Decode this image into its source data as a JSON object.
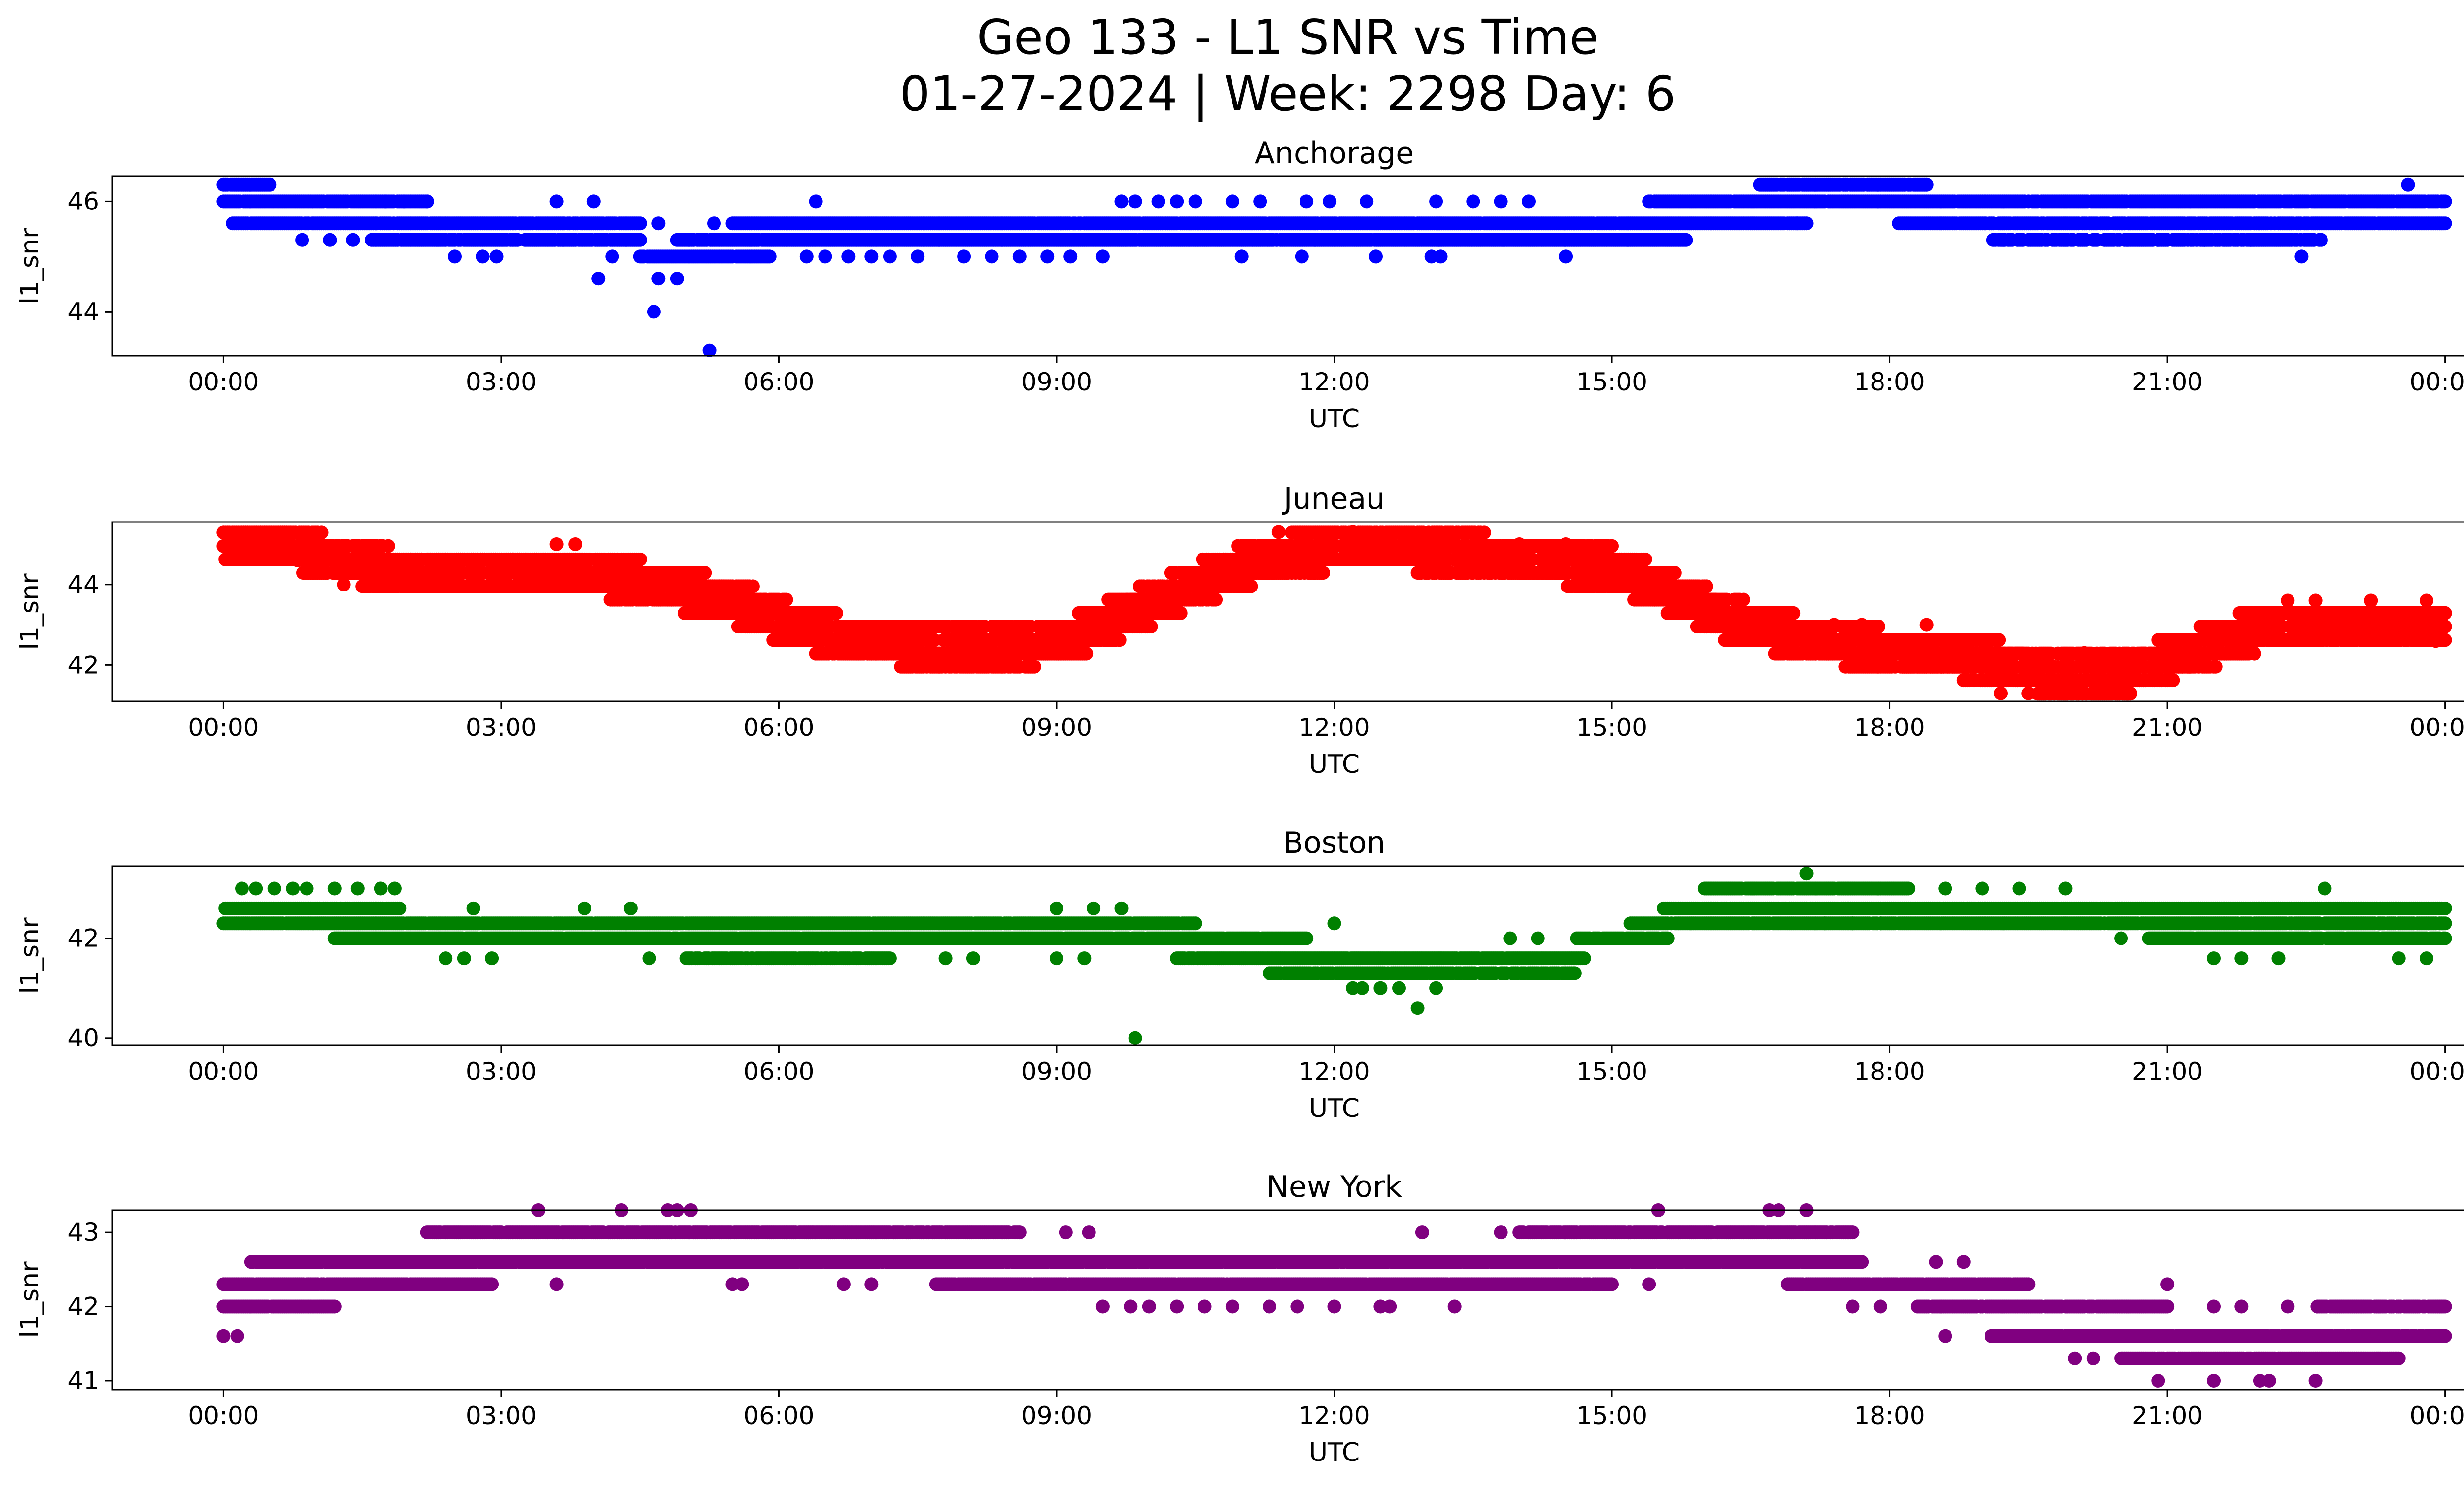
{
  "figure": {
    "title_line1": "Geo 133 - L1 SNR vs Time",
    "title_line2": "01-27-2024 | Week: 2298 Day: 6"
  },
  "chart_data": [
    {
      "type": "scatter",
      "title": "Anchorage",
      "xlabel": "UTC",
      "ylabel": "l1_snr",
      "color": "#0000ff",
      "x_range_hours": [
        -1.2,
        25.2
      ],
      "ylim": [
        43.2,
        46.45
      ],
      "xticks": [
        "00:00",
        "03:00",
        "06:00",
        "09:00",
        "12:00",
        "15:00",
        "18:00",
        "21:00",
        "00:00"
      ],
      "yticks": [
        44,
        46
      ],
      "bands": [
        {
          "y": 46.3,
          "from": 0.0,
          "to": 0.5,
          "density": 0.9
        },
        {
          "y": 46.0,
          "from": 0.0,
          "to": 2.2,
          "density": 0.95
        },
        {
          "y": 45.6,
          "from": 0.1,
          "to": 4.5,
          "density": 0.95
        },
        {
          "y": 45.3,
          "from": 1.6,
          "to": 4.5,
          "density": 0.9
        },
        {
          "y": 45.0,
          "from": 4.5,
          "to": 5.9,
          "density": 0.95
        },
        {
          "y": 45.3,
          "from": 4.9,
          "to": 15.8,
          "density": 0.97
        },
        {
          "y": 45.6,
          "from": 5.5,
          "to": 17.1,
          "density": 0.97
        },
        {
          "y": 46.0,
          "from": 15.4,
          "to": 24.0,
          "density": 0.95
        },
        {
          "y": 46.3,
          "from": 16.6,
          "to": 18.4,
          "density": 0.95
        },
        {
          "y": 45.6,
          "from": 18.1,
          "to": 24.0,
          "density": 0.95
        },
        {
          "y": 45.3,
          "from": 19.1,
          "to": 22.7,
          "density": 0.8
        }
      ],
      "sparse": [
        {
          "y": 45.3,
          "x": [
            0.85,
            1.15,
            1.4
          ]
        },
        {
          "y": 46.0,
          "x": [
            1.75,
            1.95,
            2.2,
            3.6,
            4.0,
            6.4,
            9.7,
            9.85,
            10.1,
            10.3,
            10.5,
            10.9,
            11.2,
            11.7,
            11.95,
            12.35,
            13.1,
            13.5,
            13.8,
            14.1
          ]
        },
        {
          "y": 45.0,
          "x": [
            2.5,
            2.8,
            2.95,
            6.3,
            6.5,
            6.75,
            7.0,
            7.2,
            7.5,
            8.0,
            8.3,
            8.6,
            8.9,
            9.15,
            9.5,
            11.0,
            11.65,
            12.45,
            13.05,
            13.15,
            14.5
          ]
        },
        {
          "y": 44.6,
          "x": [
            4.05,
            4.9
          ]
        },
        {
          "y": 44.3,
          "x": []
        },
        {
          "y": 44.0,
          "x": [
            4.65
          ]
        },
        {
          "y": 43.3,
          "x": [
            5.25
          ]
        },
        {
          "y": 44.6,
          "x": [
            4.7
          ]
        },
        {
          "y": 45.6,
          "x": [
            17.0
          ]
        },
        {
          "y": 45.0,
          "x": [
            4.2
          ]
        },
        {
          "y": 45.3,
          "x": [
            20.9,
            21.4,
            21.9
          ]
        },
        {
          "y": 45.0,
          "x": [
            22.45
          ]
        },
        {
          "y": 46.3,
          "x": [
            23.6
          ]
        },
        {
          "y": 45.6,
          "x": [
            4.7,
            5.3
          ]
        }
      ],
      "outliers": [],
      "fill_gaps": []
    },
    {
      "type": "scatter",
      "title": "Juneau",
      "xlabel": "UTC",
      "ylabel": "l1_snr",
      "color": "#ff0000",
      "x_range_hours": [
        -1.2,
        25.2
      ],
      "ylim": [
        41.1,
        45.55
      ],
      "xticks": [
        "00:00",
        "03:00",
        "06:00",
        "09:00",
        "12:00",
        "15:00",
        "18:00",
        "21:00",
        "00:00"
      ],
      "yticks": [
        42,
        44
      ],
      "curve": [
        [
          0,
          45.05
        ],
        [
          0.6,
          45.0
        ],
        [
          1.2,
          44.65
        ],
        [
          2.0,
          44.3
        ],
        [
          3.0,
          44.3
        ],
        [
          4.0,
          44.25
        ],
        [
          4.8,
          43.95
        ],
        [
          5.6,
          43.5
        ],
        [
          6.2,
          42.95
        ],
        [
          6.8,
          42.65
        ],
        [
          7.6,
          42.45
        ],
        [
          8.6,
          42.45
        ],
        [
          9.2,
          42.7
        ],
        [
          9.8,
          43.3
        ],
        [
          10.5,
          44.0
        ],
        [
          11.2,
          44.6
        ],
        [
          12.0,
          44.9
        ],
        [
          13.0,
          44.85
        ],
        [
          14.0,
          44.65
        ],
        [
          15.0,
          44.4
        ],
        [
          15.6,
          43.85
        ],
        [
          16.2,
          43.2
        ],
        [
          17.0,
          42.7
        ],
        [
          18.0,
          42.35
        ],
        [
          19.0,
          42.15
        ],
        [
          19.8,
          41.75
        ],
        [
          20.6,
          41.85
        ],
        [
          21.3,
          42.35
        ],
        [
          22.0,
          42.9
        ],
        [
          23.0,
          43.05
        ],
        [
          24.0,
          43.05
        ]
      ],
      "band_offsets": [
        -0.4,
        -0.2,
        0.0,
        0.2,
        0.4
      ],
      "outliers": [
        [
          0.8,
          44.6
        ],
        [
          1.3,
          44.0
        ],
        [
          1.6,
          44.0
        ],
        [
          3.6,
          45.0
        ],
        [
          3.8,
          45.0
        ],
        [
          4.0,
          44.0
        ],
        [
          7.6,
          42.0
        ],
        [
          9.3,
          42.3
        ],
        [
          11.3,
          44.3
        ],
        [
          11.4,
          45.3
        ],
        [
          12.2,
          45.3
        ],
        [
          13.6,
          45.0
        ],
        [
          14.0,
          45.0
        ],
        [
          14.5,
          45.0
        ],
        [
          17.4,
          43.0
        ],
        [
          17.7,
          43.0
        ],
        [
          18.4,
          43.0
        ],
        [
          19.2,
          41.3
        ],
        [
          19.5,
          41.3
        ],
        [
          19.9,
          41.3
        ],
        [
          20.1,
          42.3
        ],
        [
          20.6,
          41.3
        ],
        [
          22.3,
          43.6
        ],
        [
          22.6,
          43.6
        ],
        [
          23.2,
          43.6
        ],
        [
          23.8,
          43.6
        ],
        [
          23.9,
          42.6
        ]
      ]
    },
    {
      "type": "scatter",
      "title": "Boston",
      "xlabel": "UTC",
      "ylabel": "l1_snr",
      "color": "#008000",
      "x_range_hours": [
        -1.2,
        25.2
      ],
      "ylim": [
        39.85,
        43.45
      ],
      "xticks": [
        "00:00",
        "03:00",
        "06:00",
        "09:00",
        "12:00",
        "15:00",
        "18:00",
        "21:00",
        "00:00"
      ],
      "yticks": [
        40,
        42
      ],
      "bands": [
        {
          "y": 42.6,
          "from": 0.0,
          "to": 1.9,
          "density": 0.95
        },
        {
          "y": 42.3,
          "from": 0.0,
          "to": 10.5,
          "density": 0.97
        },
        {
          "y": 42.0,
          "from": 1.2,
          "to": 11.7,
          "density": 0.97
        },
        {
          "y": 41.6,
          "from": 5.0,
          "to": 7.2,
          "density": 0.8
        },
        {
          "y": 41.6,
          "from": 10.3,
          "to": 14.7,
          "density": 0.97
        },
        {
          "y": 41.3,
          "from": 11.3,
          "to": 14.6,
          "density": 0.9
        },
        {
          "y": 42.0,
          "from": 14.6,
          "to": 15.6,
          "density": 0.95
        },
        {
          "y": 42.3,
          "from": 15.2,
          "to": 24.0,
          "density": 0.95
        },
        {
          "y": 42.6,
          "from": 15.5,
          "to": 24.0,
          "density": 0.95
        },
        {
          "y": 43.0,
          "from": 16.0,
          "to": 18.2,
          "density": 0.95
        },
        {
          "y": 42.0,
          "from": 20.8,
          "to": 24.0,
          "density": 0.9
        }
      ],
      "sparse": [
        {
          "y": 43.0,
          "x": [
            0.2,
            0.35,
            0.55,
            0.75,
            0.9,
            1.2,
            1.45,
            1.7,
            1.85,
            18.6,
            19.0,
            19.4,
            19.9,
            22.7
          ]
        },
        {
          "y": 41.6,
          "x": [
            2.4,
            2.6,
            2.9,
            4.6,
            7.8,
            8.1,
            9.0,
            9.3
          ]
        },
        {
          "y": 42.6,
          "x": [
            2.7,
            3.9,
            4.4,
            9.0,
            9.4,
            9.7
          ]
        },
        {
          "y": 41.0,
          "x": [
            12.2,
            12.5,
            12.7,
            13.1
          ]
        },
        {
          "y": 40.6,
          "x": [
            12.9
          ]
        },
        {
          "y": 40.0,
          "x": [
            9.85
          ]
        },
        {
          "y": 41.0,
          "x": [
            12.3
          ]
        },
        {
          "y": 42.3,
          "x": [
            12.0
          ]
        },
        {
          "y": 42.0,
          "x": [
            13.9,
            14.2
          ]
        },
        {
          "y": 43.3,
          "x": [
            17.1
          ]
        },
        {
          "y": 42.3,
          "x": [
            17.3,
            17.6,
            17.9
          ]
        },
        {
          "y": 41.6,
          "x": [
            21.5,
            21.8,
            22.2,
            23.5,
            23.8
          ]
        },
        {
          "y": 42.0,
          "x": [
            20.5
          ]
        }
      ],
      "outliers": []
    },
    {
      "type": "scatter",
      "title": "New York",
      "xlabel": "UTC",
      "ylabel": "l1_snr",
      "color": "#800080",
      "x_range_hours": [
        -1.2,
        25.2
      ],
      "ylim": [
        40.88,
        43.3
      ],
      "xticks": [
        "00:00",
        "03:00",
        "06:00",
        "09:00",
        "12:00",
        "15:00",
        "18:00",
        "21:00",
        "00:00"
      ],
      "yticks": [
        41,
        42,
        43
      ],
      "bands": [
        {
          "y": 42.3,
          "from": 0.0,
          "to": 2.9,
          "density": 0.95
        },
        {
          "y": 42.0,
          "from": 0.0,
          "to": 1.2,
          "density": 0.95
        },
        {
          "y": 42.6,
          "from": 0.3,
          "to": 17.7,
          "density": 0.98
        },
        {
          "y": 43.0,
          "from": 2.2,
          "to": 8.6,
          "density": 0.9
        },
        {
          "y": 42.3,
          "from": 7.7,
          "to": 15.0,
          "density": 0.97
        },
        {
          "y": 43.0,
          "from": 14.0,
          "to": 17.6,
          "density": 0.9
        },
        {
          "y": 42.3,
          "from": 16.9,
          "to": 19.5,
          "density": 0.95
        },
        {
          "y": 42.0,
          "from": 18.3,
          "to": 21.0,
          "density": 0.95
        },
        {
          "y": 41.6,
          "from": 19.1,
          "to": 24.0,
          "density": 0.97
        },
        {
          "y": 41.3,
          "from": 20.5,
          "to": 23.5,
          "density": 0.95
        },
        {
          "y": 42.0,
          "from": 22.6,
          "to": 24.0,
          "density": 0.9
        }
      ],
      "sparse": [
        {
          "y": 41.6,
          "x": [
            0.0,
            0.15
          ]
        },
        {
          "y": 43.3,
          "x": [
            3.4,
            4.3,
            4.8,
            4.9,
            5.05,
            15.5,
            16.7,
            16.8,
            17.1
          ]
        },
        {
          "y": 42.3,
          "x": [
            3.6,
            5.5,
            5.6,
            6.7,
            7.0
          ]
        },
        {
          "y": 43.0,
          "x": [
            9.1,
            9.35,
            12.95,
            13.8
          ]
        },
        {
          "y": 42.0,
          "x": [
            9.5,
            9.8,
            10.0,
            10.3,
            10.6,
            10.9,
            11.3,
            11.6,
            12.0,
            12.5,
            12.6,
            13.3,
            17.6,
            17.9
          ]
        },
        {
          "y": 42.3,
          "x": [
            15.4
          ]
        },
        {
          "y": 42.6,
          "x": [
            18.5,
            18.8
          ]
        },
        {
          "y": 41.6,
          "x": [
            18.6
          ]
        },
        {
          "y": 41.3,
          "x": [
            20.0,
            20.2
          ]
        },
        {
          "y": 42.3,
          "x": [
            21.0
          ]
        },
        {
          "y": 41.0,
          "x": [
            20.9,
            21.5,
            22.0,
            22.1,
            22.6
          ]
        },
        {
          "y": 42.0,
          "x": [
            21.5,
            21.8,
            22.3
          ]
        }
      ],
      "outliers": []
    }
  ]
}
